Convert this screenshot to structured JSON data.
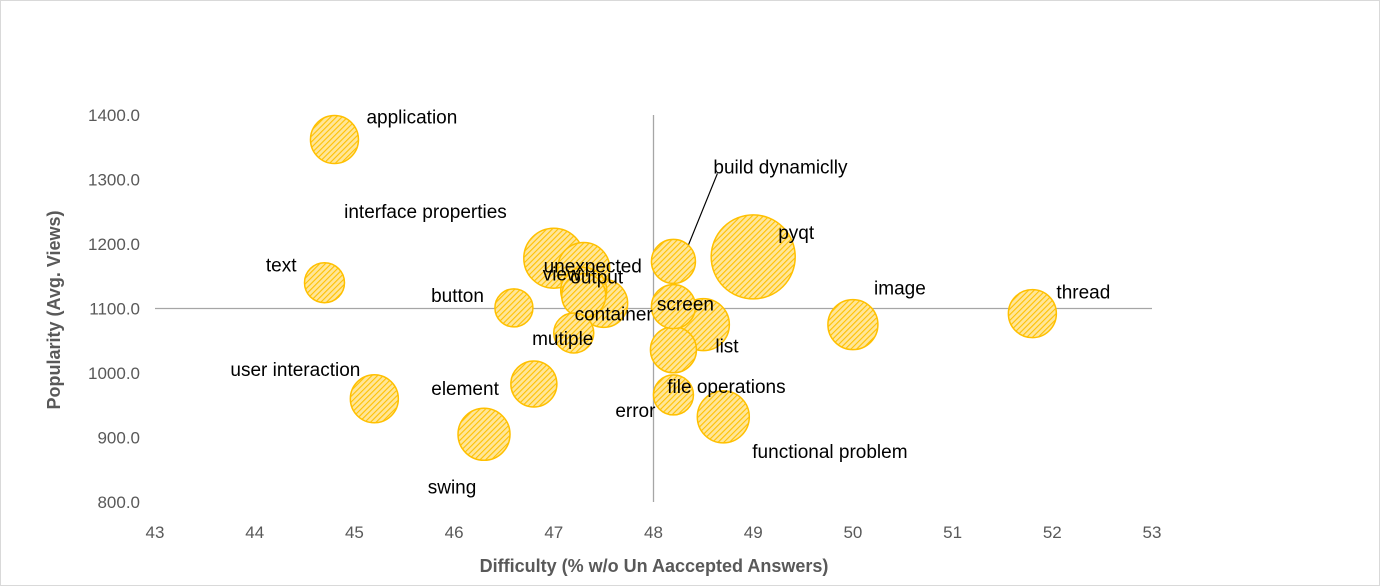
{
  "chart_data": {
    "type": "scatter",
    "subtype": "bubble",
    "xlabel": "Difficulty (% w/o Un Aaccepted Answers)",
    "ylabel": "Popularity (Avg. Views)",
    "xlim": [
      43,
      53
    ],
    "ylim": [
      800,
      1400
    ],
    "x_ticks": [
      "43",
      "44",
      "45",
      "46",
      "47",
      "48",
      "49",
      "50",
      "51",
      "52",
      "53"
    ],
    "y_ticks": [
      "800.0",
      "900.0",
      "1000.0",
      "1100.0",
      "1200.0",
      "1300.0",
      "1400.0"
    ],
    "quadrant_lines": {
      "x": 48,
      "y": 1100
    },
    "grid": false,
    "legend": "none",
    "bubble_color": "#ffc000",
    "bubble_fill_pattern": "diagonal-hatch",
    "points": [
      {
        "label": "application",
        "x": 44.8,
        "y": 1362,
        "size": 24
      },
      {
        "label": "text",
        "x": 44.7,
        "y": 1140,
        "size": 20
      },
      {
        "label": "user interaction",
        "x": 45.2,
        "y": 960,
        "size": 24
      },
      {
        "label": "swing",
        "x": 46.3,
        "y": 905,
        "size": 26
      },
      {
        "label": "element",
        "x": 46.8,
        "y": 983,
        "size": 23
      },
      {
        "label": "button",
        "x": 46.6,
        "y": 1101,
        "size": 19
      },
      {
        "label": "interface properties",
        "x": 47.0,
        "y": 1178,
        "size": 30
      },
      {
        "label": "unexpected",
        "x": 47.3,
        "y": 1162,
        "size": 26
      },
      {
        "label": "output",
        "x": 47.3,
        "y": 1128,
        "size": 23
      },
      {
        "label": "view",
        "x": 47.3,
        "y": 1120,
        "size": 22
      },
      {
        "label": "container",
        "x": 47.5,
        "y": 1108,
        "size": 24
      },
      {
        "label": "mutiple",
        "x": 47.2,
        "y": 1062,
        "size": 20
      },
      {
        "label": "build dynamiclly",
        "x": 48.2,
        "y": 1173,
        "size": 22
      },
      {
        "label": "screen",
        "x": 48.2,
        "y": 1103,
        "size": 22
      },
      {
        "label": "list",
        "x": 48.5,
        "y": 1075,
        "size": 26
      },
      {
        "label": "file operations",
        "x": 48.2,
        "y": 1036,
        "size": 23
      },
      {
        "label": "error",
        "x": 48.2,
        "y": 966,
        "size": 20
      },
      {
        "label": "functional problem",
        "x": 48.7,
        "y": 932,
        "size": 26
      },
      {
        "label": "pyqt",
        "x": 49.0,
        "y": 1180,
        "size": 42
      },
      {
        "label": "image",
        "x": 50.0,
        "y": 1075,
        "size": 25
      },
      {
        "label": "thread",
        "x": 51.8,
        "y": 1092,
        "size": 24
      }
    ]
  }
}
